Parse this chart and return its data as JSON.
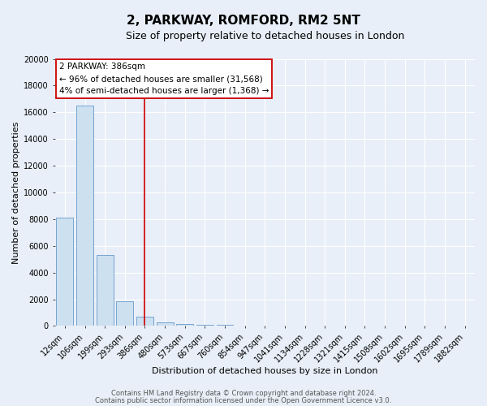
{
  "title": "2, PARKWAY, ROMFORD, RM2 5NT",
  "subtitle": "Size of property relative to detached houses in London",
  "xlabel": "Distribution of detached houses by size in London",
  "ylabel": "Number of detached properties",
  "bar_labels": [
    "12sqm",
    "106sqm",
    "199sqm",
    "293sqm",
    "386sqm",
    "480sqm",
    "573sqm",
    "667sqm",
    "760sqm",
    "854sqm",
    "947sqm",
    "1041sqm",
    "1134sqm",
    "1228sqm",
    "1321sqm",
    "1415sqm",
    "1508sqm",
    "1602sqm",
    "1695sqm",
    "1789sqm",
    "1882sqm"
  ],
  "bar_values": [
    8100,
    16500,
    5300,
    1850,
    700,
    280,
    150,
    90,
    60,
    0,
    0,
    0,
    0,
    0,
    0,
    0,
    0,
    0,
    0,
    0,
    0
  ],
  "bar_color": "#cde0f0",
  "bar_edge_color": "#6699cc",
  "vline_x_index": 4,
  "vline_color": "#cc0000",
  "ylim": [
    0,
    20000
  ],
  "yticks": [
    0,
    2000,
    4000,
    6000,
    8000,
    10000,
    12000,
    14000,
    16000,
    18000,
    20000
  ],
  "annotation_title": "2 PARKWAY: 386sqm",
  "annotation_line1": "← 96% of detached houses are smaller (31,568)",
  "annotation_line2": "4% of semi-detached houses are larger (1,368) →",
  "annotation_box_color": "#ffffff",
  "annotation_box_edge": "#cc0000",
  "footer_line1": "Contains HM Land Registry data © Crown copyright and database right 2024.",
  "footer_line2": "Contains public sector information licensed under the Open Government Licence v3.0.",
  "bg_color": "#e8eff8",
  "grid_color": "#ffffff",
  "title_fontsize": 11,
  "subtitle_fontsize": 9,
  "axis_label_fontsize": 8,
  "tick_fontsize": 7,
  "annotation_fontsize": 7.5,
  "footer_fontsize": 6
}
